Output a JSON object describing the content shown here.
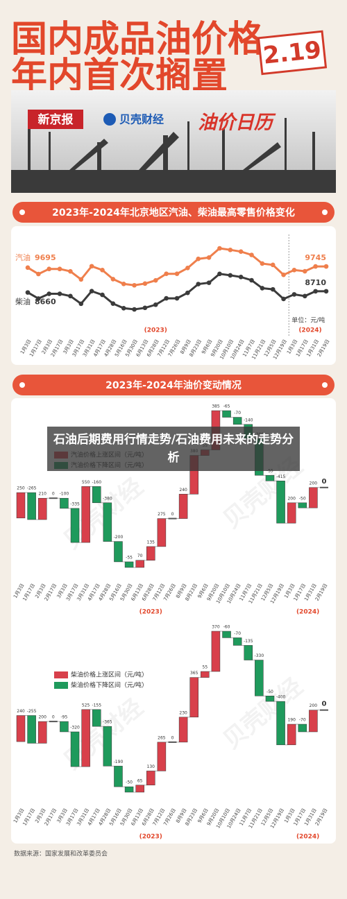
{
  "header": {
    "title_line1": "国内成品油价格",
    "title_line2": "年内首次搁置",
    "date": "2.19",
    "logo1": "新京报",
    "logo2": "贝壳财经",
    "calendar": "油价日历"
  },
  "banner": "石油后期费用行情走势/石油费用未来的走势分析",
  "watermark": "贝壳财经",
  "source": "数据来源：国家发展和改革委员会",
  "chart_data": [
    {
      "type": "line",
      "title": "2023年-2024年北京地区汽油、柴油最高零售价格变化",
      "categories": [
        "1月3日",
        "1月17日",
        "2月3日",
        "2月17日",
        "3月3日",
        "3月17日",
        "3月31日",
        "4月17日",
        "4月28日",
        "5月16日",
        "5月30日",
        "6月13日",
        "6月28日",
        "7月12日",
        "7月26日",
        "8月9日",
        "8月23日",
        "9月6日",
        "9月20日",
        "10月10日",
        "10月24日",
        "11月7日",
        "11月21日",
        "12月5日",
        "12月19日",
        "1月3日",
        "1月17日",
        "1月31日",
        "2月19日"
      ],
      "series": [
        {
          "name": "汽油",
          "color": "#ef7f4c",
          "values": [
            9695,
            9430,
            9640,
            9640,
            9540,
            9205,
            9755,
            9595,
            9215,
            9015,
            8960,
            9030,
            9165,
            9440,
            9440,
            9680,
            10060,
            10115,
            10500,
            10435,
            10365,
            10225,
            9865,
            9810,
            9395,
            9595,
            9545,
            9745,
            9745
          ]
        },
        {
          "name": "柴油",
          "color": "#3b3b3b",
          "values": [
            8660,
            8405,
            8605,
            8605,
            8510,
            8190,
            8715,
            8560,
            8195,
            8005,
            7955,
            8020,
            8150,
            8415,
            8415,
            8645,
            9010,
            9065,
            9435,
            9375,
            9305,
            9170,
            8840,
            8790,
            8390,
            8580,
            8510,
            8710,
            8710
          ]
        }
      ],
      "unit": "单位：元/吨",
      "year_labels": [
        "(2023)",
        "(2024)"
      ]
    },
    {
      "type": "waterfall",
      "title": "2023年-2024年油价变动情况",
      "categories": [
        "1月3日",
        "1月17日",
        "2月3日",
        "2月17日",
        "3月3日",
        "3月17日",
        "3月31日",
        "4月17日",
        "4月28日",
        "5月16日",
        "5月30日",
        "6月13日",
        "6月28日",
        "7月12日",
        "7月26日",
        "8月9日",
        "8月23日",
        "9月6日",
        "9月20日",
        "10月10日",
        "10月24日",
        "11月7日",
        "11月21日",
        "12月5日",
        "12月19日",
        "1月3日",
        "1月17日",
        "1月31日",
        "2月19日"
      ],
      "values": [
        250,
        -265,
        210,
        0,
        -100,
        -335,
        550,
        -160,
        -380,
        -200,
        -55,
        70,
        135,
        275,
        0,
        240,
        380,
        55,
        385,
        -65,
        -70,
        -140,
        -360,
        -55,
        -415,
        200,
        -50,
        200,
        0
      ],
      "legend": [
        "汽油价格上涨区间（元/吨）",
        "汽油价格下降区间（元/吨）"
      ],
      "up_color": "#d8404b",
      "down_color": "#1f9a5c",
      "year_labels": [
        "(2023)",
        "(2024)"
      ]
    },
    {
      "type": "waterfall",
      "categories": [
        "1月3日",
        "1月17日",
        "2月3日",
        "2月17日",
        "3月3日",
        "3月17日",
        "3月31日",
        "4月17日",
        "4月28日",
        "5月16日",
        "5月30日",
        "6月13日",
        "6月28日",
        "7月12日",
        "7月26日",
        "8月9日",
        "8月23日",
        "9月6日",
        "9月20日",
        "10月10日",
        "10月24日",
        "11月7日",
        "11月21日",
        "12月5日",
        "12月19日",
        "1月3日",
        "1月17日",
        "1月31日",
        "2月19日"
      ],
      "values": [
        240,
        -255,
        200,
        0,
        -95,
        -320,
        525,
        -155,
        -365,
        -190,
        -50,
        65,
        130,
        265,
        0,
        230,
        365,
        55,
        370,
        -60,
        -70,
        -135,
        -330,
        -50,
        -400,
        190,
        -70,
        200,
        0
      ],
      "legend": [
        "柴油价格上涨区间（元/吨）",
        "柴油价格下降区间（元/吨）"
      ],
      "up_color": "#d8404b",
      "down_color": "#1f9a5c",
      "year_labels": [
        "(2023)",
        "(2024)"
      ]
    }
  ]
}
